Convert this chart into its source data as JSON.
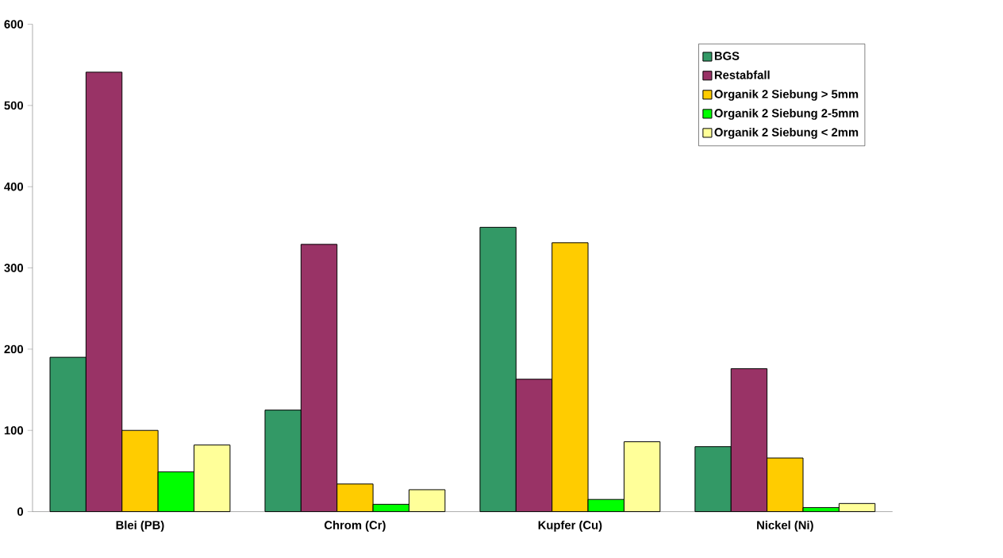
{
  "chart_data": {
    "type": "bar",
    "categories": [
      "Blei (PB)",
      "Chrom (Cr)",
      "Kupfer (Cu)",
      "Nickel (Ni)"
    ],
    "series": [
      {
        "name": "BGS",
        "color": "#339966",
        "values": [
          190,
          125,
          350,
          80
        ]
      },
      {
        "name": "Restabfall",
        "color": "#993366",
        "values": [
          541,
          329,
          163,
          176
        ]
      },
      {
        "name": "Organik 2 Siebung > 5mm",
        "color": "#ffcc00",
        "values": [
          100,
          34,
          331,
          66
        ]
      },
      {
        "name": "Organik 2 Siebung 2-5mm",
        "color": "#00ff00",
        "values": [
          49,
          9,
          15,
          5
        ]
      },
      {
        "name": "Organik 2 Siebung < 2mm",
        "color": "#ffff99",
        "values": [
          82,
          27,
          86,
          10
        ]
      }
    ],
    "ylim": [
      0,
      600
    ],
    "yticks": [
      0,
      100,
      200,
      300,
      400,
      500,
      600
    ],
    "grid": false,
    "legend": "top right"
  }
}
